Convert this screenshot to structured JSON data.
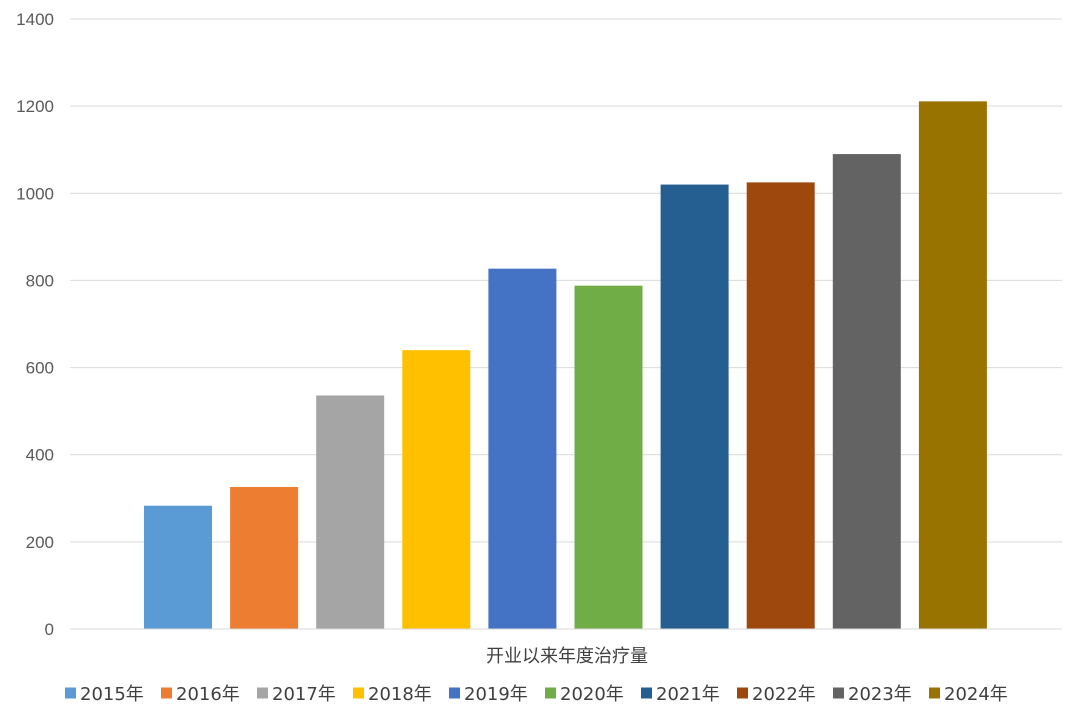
{
  "chart_data": {
    "type": "bar",
    "categories": [
      "开业以来年度治疗量"
    ],
    "series": [
      {
        "name": "2015年",
        "values": [
          283
        ],
        "color": "#5B9BD5"
      },
      {
        "name": "2016年",
        "values": [
          326
        ],
        "color": "#ED7D31"
      },
      {
        "name": "2017年",
        "values": [
          536
        ],
        "color": "#A5A5A5"
      },
      {
        "name": "2018年",
        "values": [
          640
        ],
        "color": "#FFC000"
      },
      {
        "name": "2019年",
        "values": [
          827
        ],
        "color": "#4472C4"
      },
      {
        "name": "2020年",
        "values": [
          788
        ],
        "color": "#70AD47"
      },
      {
        "name": "2021年",
        "values": [
          1020
        ],
        "color": "#255E91"
      },
      {
        "name": "2022年",
        "values": [
          1025
        ],
        "color": "#9E480E"
      },
      {
        "name": "2023年",
        "values": [
          1090
        ],
        "color": "#636363"
      },
      {
        "name": "2024年",
        "values": [
          1211
        ],
        "color": "#997300"
      }
    ],
    "title": "",
    "xlabel": "",
    "ylabel": "",
    "ylim": [
      0,
      1400
    ],
    "yticks": [
      "0",
      "200",
      "400",
      "600",
      "800",
      "1000",
      "1200",
      "1400"
    ],
    "grid": true,
    "legend_position": "bottom"
  }
}
